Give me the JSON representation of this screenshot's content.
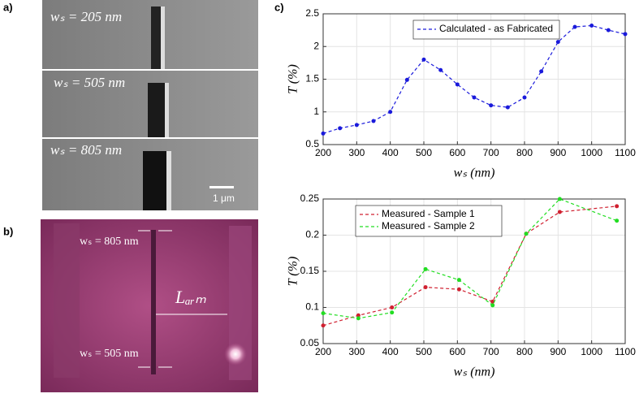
{
  "panels": {
    "a": {
      "label": "a)",
      "images": [
        {
          "label": "wₛ = 205 nm"
        },
        {
          "label": "wₛ = 505 nm"
        },
        {
          "label": "wₛ = 805 nm"
        }
      ],
      "scale_bar": "1 μm"
    },
    "b": {
      "label": "b)",
      "top_label": "wₛ = 805 nm",
      "bottom_label": "wₛ = 505 nm",
      "length_label": "Lₐᵣₘ"
    },
    "c": {
      "label": "c)"
    }
  },
  "chart_data": [
    {
      "type": "line",
      "xlabel": "wₛ (nm)",
      "ylabel": "T (%)",
      "x": [
        200,
        250,
        300,
        350,
        400,
        450,
        500,
        550,
        600,
        650,
        700,
        750,
        800,
        850,
        900,
        950,
        1000,
        1050,
        1100
      ],
      "series": [
        {
          "name": "Calculated - as Fabricated",
          "color": "#1a1adb",
          "values": [
            0.67,
            0.75,
            0.8,
            0.86,
            1.0,
            1.49,
            1.8,
            1.64,
            1.42,
            1.22,
            1.1,
            1.07,
            1.22,
            1.62,
            2.07,
            2.3,
            2.32,
            2.25,
            2.19
          ]
        }
      ],
      "xlim": [
        200,
        1100
      ],
      "xticks": [
        200,
        300,
        400,
        500,
        600,
        700,
        800,
        900,
        1000,
        1100
      ],
      "ylim": [
        0.5,
        2.5
      ],
      "yticks": [
        0.5,
        1,
        1.5,
        2,
        2.5
      ],
      "grid": true,
      "legend": "north"
    },
    {
      "type": "line",
      "xlabel": "wₛ (nm)",
      "ylabel": "T (%)",
      "x": [
        200,
        305,
        405,
        505,
        605,
        705,
        805,
        905,
        1075
      ],
      "series": [
        {
          "name": "Measured - Sample 1",
          "color": "#d02030",
          "values": [
            0.075,
            0.089,
            0.1,
            0.128,
            0.125,
            0.108,
            0.202,
            0.232,
            0.24
          ]
        },
        {
          "name": "Measured - Sample 2",
          "color": "#22dd22",
          "values": [
            0.092,
            0.085,
            0.093,
            0.153,
            0.138,
            0.103,
            0.202,
            0.25,
            0.22
          ]
        }
      ],
      "xlim": [
        200,
        1100
      ],
      "xticks": [
        200,
        300,
        400,
        500,
        600,
        700,
        800,
        900,
        1000,
        1100
      ],
      "ylim": [
        0.05,
        0.25
      ],
      "yticks": [
        0.05,
        0.1,
        0.15,
        0.2,
        0.25
      ],
      "grid": true,
      "legend": "northwest"
    }
  ]
}
